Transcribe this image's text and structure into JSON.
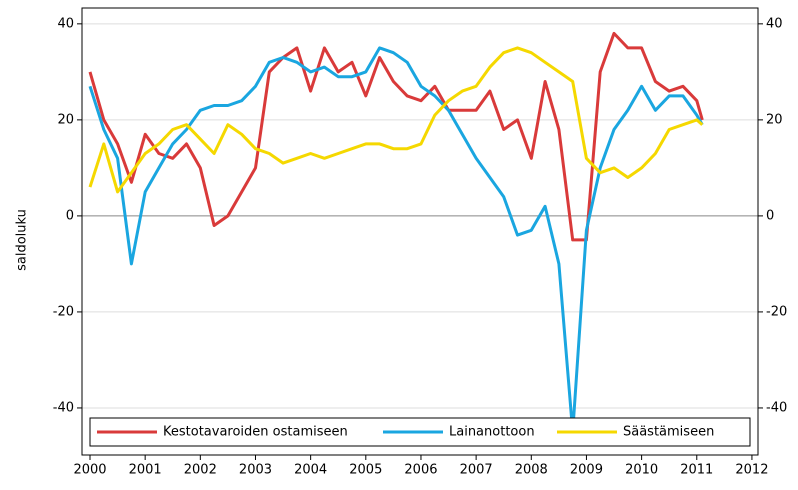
{
  "chart_data": {
    "type": "line",
    "y_label": "saldoluku",
    "x": [
      2000,
      2000.25,
      2000.5,
      2000.75,
      2001,
      2001.25,
      2001.5,
      2001.75,
      2002,
      2002.25,
      2002.5,
      2002.75,
      2003,
      2003.25,
      2003.5,
      2003.75,
      2004,
      2004.25,
      2004.5,
      2004.75,
      2005,
      2005.25,
      2005.5,
      2005.75,
      2006,
      2006.25,
      2006.5,
      2006.75,
      2007,
      2007.25,
      2007.5,
      2007.75,
      2008,
      2008.25,
      2008.5,
      2008.75,
      2009,
      2009.25,
      2009.5,
      2009.75,
      2010,
      2010.25,
      2010.5,
      2010.75,
      2011,
      2011.1
    ],
    "series": [
      {
        "name": "Kestotavaroiden ostamiseen",
        "color": "#d93a3a",
        "values": [
          30,
          20,
          15,
          7,
          17,
          13,
          12,
          15,
          10,
          -2,
          0,
          5,
          10,
          30,
          33,
          35,
          26,
          35,
          30,
          32,
          25,
          33,
          28,
          25,
          24,
          27,
          22,
          22,
          22,
          26,
          18,
          20,
          12,
          28,
          18,
          -5,
          -5,
          30,
          38,
          35,
          35,
          28,
          26,
          27,
          24,
          20
        ]
      },
      {
        "name": "Lainanottoon",
        "color": "#1aa6e0",
        "values": [
          27,
          18,
          12,
          -10,
          5,
          10,
          15,
          18,
          22,
          23,
          23,
          24,
          27,
          32,
          33,
          32,
          30,
          31,
          29,
          29,
          30,
          35,
          34,
          32,
          27,
          25,
          22,
          17,
          12,
          8,
          4,
          -4,
          -3,
          2,
          -10,
          -45,
          -3,
          10,
          18,
          22,
          27,
          22,
          25,
          25,
          21,
          19
        ]
      },
      {
        "name": "Säästämiseen",
        "color": "#f5d800",
        "values": [
          6,
          15,
          5,
          9,
          13,
          15,
          18,
          19,
          16,
          13,
          19,
          17,
          14,
          13,
          11,
          12,
          13,
          12,
          13,
          14,
          15,
          15,
          14,
          14,
          15,
          21,
          24,
          26,
          27,
          31,
          34,
          35,
          34,
          32,
          30,
          28,
          12,
          9,
          10,
          8,
          10,
          13,
          18,
          19,
          20,
          19
        ]
      }
    ],
    "xlim": [
      1999.855,
      2012.11
    ],
    "xticks": [
      2000,
      2001,
      2002,
      2003,
      2004,
      2005,
      2006,
      2007,
      2008,
      2009,
      2010,
      2011,
      2012
    ],
    "ylim": [
      -49.8,
      43.3
    ],
    "yticks": [
      -40,
      -20,
      0,
      20,
      40
    ],
    "grid": true,
    "legend": "bottom"
  }
}
